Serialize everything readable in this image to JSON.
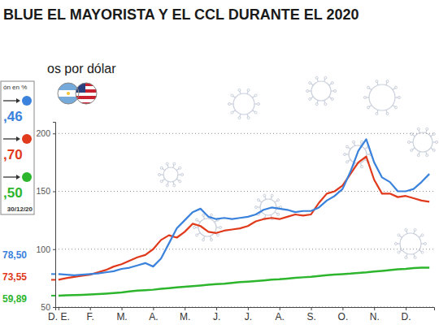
{
  "chart_data": {
    "type": "line",
    "title": "BLUE EL MAYORISTA Y EL CCL DURANTE EL 2020",
    "y_label": "os por dólar",
    "change_title": "ón en %",
    "change_date": "30/12/20",
    "x": [
      0,
      0.25,
      0.5,
      0.75,
      1,
      1.25,
      1.5,
      1.75,
      2,
      2.25,
      2.5,
      2.75,
      3,
      3.25,
      3.5,
      3.75,
      4,
      4.25,
      4.5,
      4.75,
      5,
      5.25,
      5.5,
      5.75,
      6,
      6.25,
      6.5,
      6.75,
      7,
      7.25,
      7.5,
      7.75,
      8,
      8.25,
      8.5,
      8.75,
      9,
      9.25,
      9.5,
      9.75,
      10,
      10.25,
      10.5,
      10.75,
      11,
      11.25,
      11.5,
      11.75
    ],
    "xlim": [
      -0.1,
      11.9
    ],
    "xticks": [
      {
        "value": 0,
        "label": "D. E."
      },
      {
        "value": 1,
        "label": "F."
      },
      {
        "value": 2,
        "label": "M."
      },
      {
        "value": 3,
        "label": "A."
      },
      {
        "value": 4,
        "label": "M."
      },
      {
        "value": 5,
        "label": "J."
      },
      {
        "value": 6,
        "label": "J."
      },
      {
        "value": 7,
        "label": "A."
      },
      {
        "value": 8,
        "label": "S."
      },
      {
        "value": 9,
        "label": "O."
      },
      {
        "value": 10,
        "label": "N."
      },
      {
        "value": 11,
        "label": "D."
      }
    ],
    "ylim": [
      50,
      210
    ],
    "yticks": [
      50,
      100,
      150,
      200
    ],
    "grid": true,
    "series": [
      {
        "color": "#3b82dc",
        "values": [
          78.5,
          78,
          77.5,
          78,
          78.5,
          79,
          80,
          81,
          83,
          84,
          86,
          88,
          85,
          92,
          105,
          118,
          125,
          132,
          135,
          128,
          126,
          127,
          126,
          127,
          128,
          130,
          134,
          136,
          135,
          134,
          132,
          133,
          133,
          136,
          142,
          146,
          152,
          167,
          185,
          195,
          175,
          162,
          158,
          150,
          150,
          152,
          158,
          165
        ],
        "start_value": 78.5,
        "start_label": "78,50",
        "change_label": ",46"
      },
      {
        "color": "#e0391b",
        "values": [
          73.55,
          75,
          76,
          77,
          78,
          80,
          82,
          85,
          87,
          90,
          93,
          95,
          100,
          108,
          112,
          110,
          115,
          122,
          120,
          115,
          114,
          116,
          117,
          118,
          120,
          124,
          126,
          127,
          126,
          128,
          130,
          129,
          130,
          140,
          148,
          150,
          155,
          165,
          175,
          180,
          160,
          148,
          148,
          145,
          146,
          144,
          142,
          141
        ],
        "start_value": 73.55,
        "start_label": "73,55",
        "change_label": ",70"
      },
      {
        "color": "#2db52d",
        "values": [
          59.89,
          60.1,
          60.3,
          60.5,
          60.8,
          61.2,
          61.6,
          62.1,
          62.6,
          63.5,
          64.2,
          64.6,
          65.0,
          65.8,
          66.4,
          67.0,
          67.5,
          68.0,
          68.6,
          69.3,
          69.8,
          70.2,
          70.8,
          71.5,
          72.0,
          72.5,
          73.0,
          73.6,
          74.0,
          74.6,
          75.2,
          75.7,
          76.1,
          76.8,
          77.5,
          78.1,
          78.5,
          78.9,
          79.5,
          80.0,
          80.7,
          81.3,
          81.9,
          82.6,
          83.0,
          83.6,
          84.0,
          84.1
        ],
        "start_value": 59.89,
        "start_label": "59,89",
        "change_label": ",50"
      }
    ]
  }
}
